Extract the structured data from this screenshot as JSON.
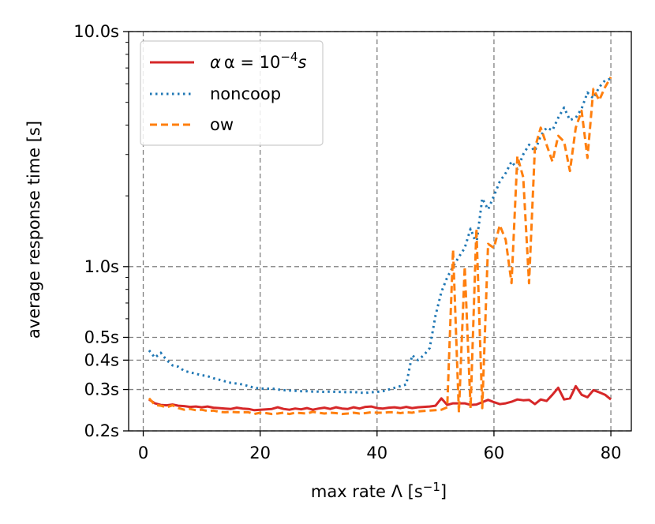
{
  "chart_data": {
    "type": "line",
    "title": "",
    "xlabel": "max rate Λ [s",
    "xlabel_sup": "−1",
    "xlabel_end": "]",
    "ylabel": "average response time [s]",
    "yscale": "log",
    "xlim": [
      -2.5,
      83.5
    ],
    "ylim": [
      0.2,
      10.0
    ],
    "grid": true,
    "legend_position": "top-left",
    "x_ticks": [
      0,
      20,
      40,
      60,
      80
    ],
    "x_tick_labels": [
      "0",
      "20",
      "40",
      "60",
      "80"
    ],
    "y_ticks": [
      0.2,
      0.3,
      0.4,
      0.5,
      1.0,
      10.0
    ],
    "y_tick_labels": [
      "0.2s",
      "0.3s",
      "0.4s",
      "0.5s",
      "1.0s",
      "10.0s"
    ],
    "series": [
      {
        "name": "α = 10",
        "name_sup": "−4",
        "name_suffix": "s",
        "color": "#d62728",
        "style": "solid",
        "x": [
          1,
          2,
          3,
          4,
          5,
          6,
          7,
          8,
          9,
          10,
          11,
          12,
          13,
          14,
          15,
          16,
          17,
          18,
          19,
          20,
          21,
          22,
          23,
          24,
          25,
          26,
          27,
          28,
          29,
          30,
          31,
          32,
          33,
          34,
          35,
          36,
          37,
          38,
          39,
          40,
          41,
          42,
          43,
          44,
          45,
          46,
          47,
          48,
          49,
          50,
          51,
          52,
          53,
          54,
          55,
          56,
          57,
          58,
          59,
          60,
          61,
          62,
          63,
          64,
          65,
          66,
          67,
          68,
          69,
          70,
          71,
          72,
          73,
          74,
          75,
          76,
          77,
          78,
          79,
          80
        ],
        "values": [
          0.272,
          0.262,
          0.258,
          0.257,
          0.259,
          0.256,
          0.255,
          0.253,
          0.254,
          0.252,
          0.254,
          0.251,
          0.25,
          0.249,
          0.248,
          0.251,
          0.249,
          0.248,
          0.245,
          0.246,
          0.247,
          0.248,
          0.252,
          0.248,
          0.246,
          0.249,
          0.247,
          0.25,
          0.246,
          0.249,
          0.251,
          0.248,
          0.252,
          0.249,
          0.248,
          0.252,
          0.249,
          0.253,
          0.254,
          0.25,
          0.249,
          0.251,
          0.252,
          0.25,
          0.253,
          0.25,
          0.252,
          0.253,
          0.254,
          0.256,
          0.275,
          0.258,
          0.262,
          0.262,
          0.262,
          0.258,
          0.259,
          0.265,
          0.271,
          0.265,
          0.26,
          0.262,
          0.266,
          0.272,
          0.27,
          0.271,
          0.26,
          0.272,
          0.268,
          0.285,
          0.305,
          0.272,
          0.275,
          0.31,
          0.285,
          0.278,
          0.298,
          0.292,
          0.285,
          0.272
        ]
      },
      {
        "name": "noncoop",
        "color": "#1f77b4",
        "style": "dotted",
        "x": [
          1,
          2,
          3,
          4,
          5,
          6,
          7,
          8,
          9,
          10,
          11,
          12,
          13,
          14,
          15,
          16,
          17,
          18,
          19,
          20,
          21,
          22,
          23,
          24,
          25,
          26,
          27,
          28,
          29,
          30,
          31,
          32,
          33,
          34,
          35,
          36,
          37,
          38,
          39,
          40,
          41,
          42,
          43,
          44,
          45,
          46,
          47,
          48,
          49,
          50,
          51,
          52,
          53,
          54,
          55,
          56,
          57,
          58,
          59,
          60,
          61,
          62,
          63,
          64,
          65,
          66,
          67,
          68,
          69,
          70,
          71,
          72,
          73,
          74,
          75,
          76,
          77,
          78,
          79,
          80
        ],
        "values": [
          0.44,
          0.41,
          0.43,
          0.4,
          0.38,
          0.375,
          0.36,
          0.355,
          0.35,
          0.345,
          0.342,
          0.335,
          0.33,
          0.325,
          0.32,
          0.318,
          0.315,
          0.31,
          0.305,
          0.303,
          0.302,
          0.303,
          0.3,
          0.298,
          0.297,
          0.296,
          0.295,
          0.295,
          0.294,
          0.294,
          0.293,
          0.294,
          0.293,
          0.293,
          0.292,
          0.293,
          0.291,
          0.29,
          0.292,
          0.293,
          0.295,
          0.3,
          0.305,
          0.31,
          0.315,
          0.42,
          0.4,
          0.42,
          0.45,
          0.62,
          0.78,
          0.9,
          1.0,
          1.1,
          1.2,
          1.45,
          1.25,
          1.95,
          1.75,
          2.0,
          2.3,
          2.5,
          2.8,
          2.6,
          3.0,
          3.3,
          3.1,
          3.6,
          3.9,
          3.8,
          4.3,
          4.75,
          4.2,
          4.3,
          4.7,
          5.5,
          5.2,
          5.8,
          6.2,
          6.3
        ]
      },
      {
        "name": "ow",
        "color": "#ff7f0e",
        "style": "dashed",
        "x": [
          1,
          2,
          3,
          4,
          5,
          6,
          7,
          8,
          9,
          10,
          11,
          12,
          13,
          14,
          15,
          16,
          17,
          18,
          19,
          20,
          21,
          22,
          23,
          24,
          25,
          26,
          27,
          28,
          29,
          30,
          31,
          32,
          33,
          34,
          35,
          36,
          37,
          38,
          39,
          40,
          41,
          42,
          43,
          44,
          45,
          46,
          47,
          48,
          49,
          50,
          51,
          52,
          53,
          54,
          55,
          56,
          57,
          58,
          59,
          60,
          61,
          62,
          63,
          64,
          65,
          66,
          67,
          68,
          69,
          70,
          71,
          72,
          73,
          74,
          75,
          76,
          77,
          78,
          79,
          80
        ],
        "values": [
          0.275,
          0.258,
          0.256,
          0.252,
          0.257,
          0.25,
          0.246,
          0.248,
          0.245,
          0.246,
          0.243,
          0.244,
          0.241,
          0.24,
          0.241,
          0.24,
          0.24,
          0.24,
          0.236,
          0.239,
          0.238,
          0.236,
          0.237,
          0.239,
          0.236,
          0.239,
          0.238,
          0.237,
          0.241,
          0.239,
          0.237,
          0.239,
          0.238,
          0.236,
          0.237,
          0.239,
          0.237,
          0.238,
          0.24,
          0.239,
          0.239,
          0.24,
          0.24,
          0.238,
          0.24,
          0.239,
          0.242,
          0.243,
          0.244,
          0.245,
          0.246,
          0.252,
          1.18,
          0.24,
          1.0,
          0.25,
          1.45,
          0.25,
          1.25,
          1.2,
          1.5,
          1.3,
          0.85,
          2.95,
          2.4,
          0.85,
          3.2,
          3.9,
          3.3,
          2.8,
          3.6,
          3.4,
          2.55,
          3.9,
          4.6,
          2.9,
          5.7,
          5.1,
          5.8,
          6.4
        ]
      }
    ]
  }
}
